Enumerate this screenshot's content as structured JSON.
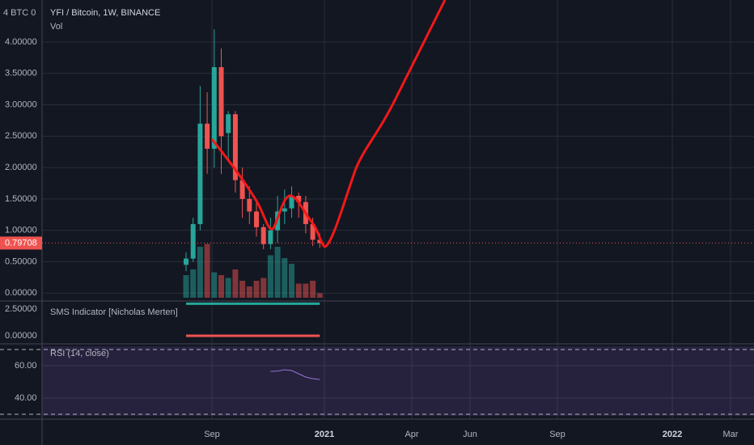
{
  "header": {
    "symbol": "YFI / Bitcoin, 1W, BINANCE",
    "volume_label": "Vol",
    "scale_unit": "4 BTC 0"
  },
  "price_chart": {
    "type": "candlestick",
    "ylim": [
      -0.1,
      4.67
    ],
    "yticks": [
      {
        "value": 4,
        "label": "4.00000"
      },
      {
        "value": 3.5,
        "label": "3.50000"
      },
      {
        "value": 3,
        "label": "3.00000"
      },
      {
        "value": 2.5,
        "label": "2.50000"
      },
      {
        "value": 2,
        "label": "2.00000"
      },
      {
        "value": 1.5,
        "label": "1.50000"
      },
      {
        "value": 1,
        "label": "1.00000"
      },
      {
        "value": 0.5,
        "label": "0.50000"
      },
      {
        "value": 0,
        "label": "0.00000"
      }
    ],
    "up_color": "#26a69a",
    "down_color": "#ef5350",
    "open": [
      0.45,
      0.55,
      1.1,
      2.7,
      2.3,
      3.6,
      2.55,
      2.85,
      1.8,
      1.5,
      1.3,
      1.05,
      0.78,
      1.0,
      1.3,
      1.35,
      1.55,
      1.45,
      1.1,
      0.85
    ],
    "high": [
      0.65,
      1.2,
      3.3,
      3.2,
      4.2,
      3.9,
      2.9,
      2.9,
      2.0,
      1.7,
      1.5,
      1.1,
      1.2,
      1.55,
      1.65,
      1.7,
      1.6,
      1.55,
      1.2,
      0.95
    ],
    "low": [
      0.35,
      0.5,
      1.0,
      1.9,
      2.0,
      1.9,
      2.1,
      1.6,
      1.2,
      1.1,
      0.9,
      0.7,
      0.7,
      0.8,
      1.1,
      1.2,
      1.2,
      0.95,
      0.75,
      0.72
    ],
    "close": [
      0.55,
      1.1,
      2.7,
      2.3,
      3.6,
      2.5,
      2.85,
      1.8,
      1.5,
      1.3,
      1.05,
      0.78,
      1.0,
      1.3,
      1.35,
      1.55,
      1.45,
      1.1,
      0.85,
      0.79708
    ],
    "volume": [
      40,
      50,
      90,
      95,
      45,
      40,
      35,
      50,
      30,
      20,
      30,
      35,
      75,
      90,
      70,
      60,
      25,
      25,
      30,
      8
    ],
    "volume_max": 100,
    "last_price": {
      "value": 0.79708,
      "label": "0.79708"
    }
  },
  "sms": {
    "label": "SMS Indicator [Nicholas Merten]",
    "ylim": [
      -0.76,
      3.26
    ],
    "yticks": [
      {
        "value": 2.5,
        "label": "2.50000"
      },
      {
        "value": 0,
        "label": "0.00000"
      }
    ],
    "bull": 3,
    "bear": 0
  },
  "rsi": {
    "label": "RSI (14, close)",
    "ylim": [
      27,
      73.5
    ],
    "yticks": [
      {
        "value": 60,
        "label": "60.00"
      },
      {
        "value": 40,
        "label": "40.00"
      }
    ],
    "bands": [
      70,
      30
    ],
    "start_index": 12,
    "values": [
      56.5,
      56.7,
      57.5,
      57,
      55,
      53,
      52,
      51.5
    ]
  },
  "time_axis": [
    "Sep",
    "2021",
    "Apr",
    "Jun",
    "Sep",
    "2022",
    "Mar"
  ]
}
